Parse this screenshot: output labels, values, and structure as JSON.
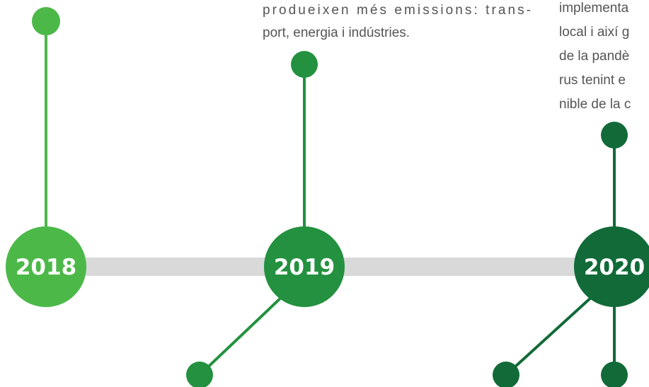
{
  "text_left": [
    "produeixen més emissions: trans-",
    "port, energia i indústries."
  ],
  "text_right": [
    "implementa",
    "local i així g",
    "de la pandè",
    "rus tenint e",
    "nible de la c"
  ],
  "years": [
    "2018",
    "2019",
    "2020"
  ]
}
